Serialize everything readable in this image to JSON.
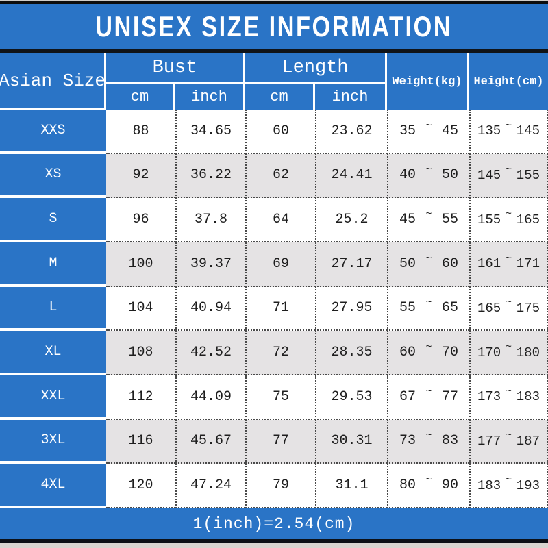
{
  "title": "UNISEX SIZE INFORMATION",
  "footer_note": "1(inch)=2.54(cm)",
  "colors": {
    "accent_blue": "#2a74c6",
    "alt_row_gray": "#e5e3e4",
    "text_dark": "#1e1e1e"
  },
  "header": {
    "size_column": "Asian Size",
    "bust_group": "Bust",
    "length_group": "Length",
    "sub_cm": "cm",
    "sub_inch": "inch",
    "weight": "Weight(kg)",
    "height": "Height(cm)"
  },
  "tilde": "~",
  "chart_data": {
    "type": "table",
    "title": "UNISEX SIZE INFORMATION",
    "columns": [
      "Asian Size",
      "Bust cm",
      "Bust inch",
      "Length cm",
      "Length inch",
      "Weight(kg)",
      "Height(cm)"
    ],
    "rows": [
      [
        "XXS",
        88,
        34.65,
        60,
        23.62,
        "35~45",
        "135~145"
      ],
      [
        "XS",
        92,
        36.22,
        62,
        24.41,
        "40~50",
        "145~155"
      ],
      [
        "S",
        96,
        37.8,
        64,
        25.2,
        "45~55",
        "155~165"
      ],
      [
        "M",
        100,
        39.37,
        69,
        27.17,
        "50~60",
        "161~171"
      ],
      [
        "L",
        104,
        40.94,
        71,
        27.95,
        "55~65",
        "165~175"
      ],
      [
        "XL",
        108,
        42.52,
        72,
        28.35,
        "60~70",
        "170~180"
      ],
      [
        "XXL",
        112,
        44.09,
        75,
        29.53,
        "67~77",
        "173~183"
      ],
      [
        "3XL",
        116,
        45.67,
        77,
        30.31,
        "73~83",
        "177~187"
      ],
      [
        "4XL",
        120,
        47.24,
        79,
        31.1,
        "80~90",
        "183~193"
      ]
    ]
  },
  "rows": [
    {
      "size": "XXS",
      "bust_cm": "88",
      "bust_inch": "34.65",
      "length_cm": "60",
      "length_inch": "23.62",
      "weight_min": "35",
      "weight_max": "45",
      "height_min": "135",
      "height_max": "145"
    },
    {
      "size": "XS",
      "bust_cm": "92",
      "bust_inch": "36.22",
      "length_cm": "62",
      "length_inch": "24.41",
      "weight_min": "40",
      "weight_max": "50",
      "height_min": "145",
      "height_max": "155"
    },
    {
      "size": "S",
      "bust_cm": "96",
      "bust_inch": "37.8",
      "length_cm": "64",
      "length_inch": "25.2",
      "weight_min": "45",
      "weight_max": "55",
      "height_min": "155",
      "height_max": "165"
    },
    {
      "size": "M",
      "bust_cm": "100",
      "bust_inch": "39.37",
      "length_cm": "69",
      "length_inch": "27.17",
      "weight_min": "50",
      "weight_max": "60",
      "height_min": "161",
      "height_max": "171"
    },
    {
      "size": "L",
      "bust_cm": "104",
      "bust_inch": "40.94",
      "length_cm": "71",
      "length_inch": "27.95",
      "weight_min": "55",
      "weight_max": "65",
      "height_min": "165",
      "height_max": "175"
    },
    {
      "size": "XL",
      "bust_cm": "108",
      "bust_inch": "42.52",
      "length_cm": "72",
      "length_inch": "28.35",
      "weight_min": "60",
      "weight_max": "70",
      "height_min": "170",
      "height_max": "180"
    },
    {
      "size": "XXL",
      "bust_cm": "112",
      "bust_inch": "44.09",
      "length_cm": "75",
      "length_inch": "29.53",
      "weight_min": "67",
      "weight_max": "77",
      "height_min": "173",
      "height_max": "183"
    },
    {
      "size": "3XL",
      "bust_cm": "116",
      "bust_inch": "45.67",
      "length_cm": "77",
      "length_inch": "30.31",
      "weight_min": "73",
      "weight_max": "83",
      "height_min": "177",
      "height_max": "187"
    },
    {
      "size": "4XL",
      "bust_cm": "120",
      "bust_inch": "47.24",
      "length_cm": "79",
      "length_inch": "31.1",
      "weight_min": "80",
      "weight_max": "90",
      "height_min": "183",
      "height_max": "193"
    }
  ]
}
